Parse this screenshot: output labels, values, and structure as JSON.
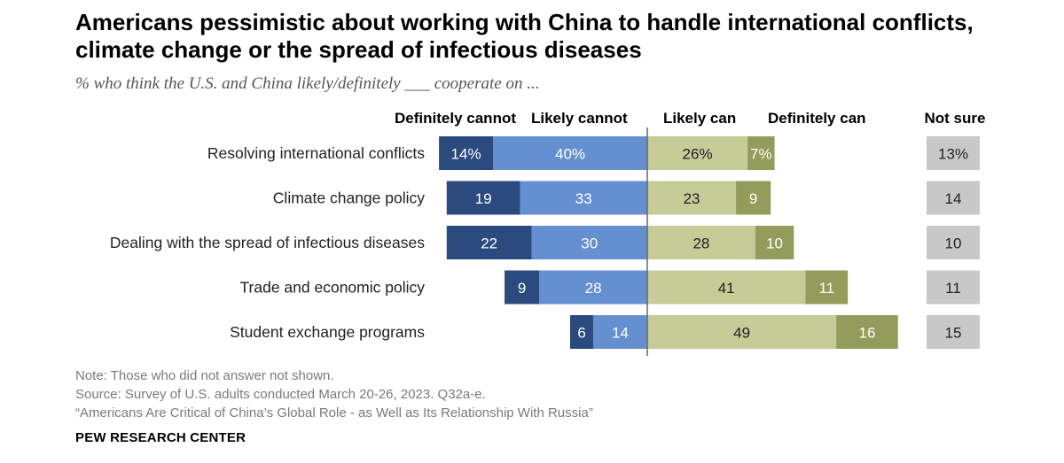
{
  "title": "Americans pessimistic about working with China to handle international conflicts, climate change or the spread of infectious diseases",
  "subtitle": "% who think the U.S. and China likely/definitely ___ cooperate on ...",
  "chart_data": {
    "type": "bar",
    "orientation": "horizontal-diverging",
    "categories": [
      "Resolving international conflicts",
      "Climate change policy",
      "Dealing with the spread of infectious diseases",
      "Trade and economic policy",
      "Student exchange programs"
    ],
    "series": [
      {
        "name": "Definitely cannot",
        "values": [
          14,
          19,
          22,
          9,
          6
        ],
        "labels": [
          "14%",
          "19",
          "22",
          "9",
          "6"
        ],
        "color": "#2b4a7e",
        "side": "negative"
      },
      {
        "name": "Likely cannot",
        "values": [
          40,
          33,
          30,
          28,
          14
        ],
        "labels": [
          "40%",
          "33",
          "30",
          "28",
          "14"
        ],
        "color": "#6490d2",
        "side": "negative"
      },
      {
        "name": "Likely can",
        "values": [
          26,
          23,
          28,
          41,
          49
        ],
        "labels": [
          "26%",
          "23",
          "28",
          "41",
          "49"
        ],
        "color": "#c7cb98",
        "side": "positive"
      },
      {
        "name": "Definitely can",
        "values": [
          7,
          9,
          10,
          11,
          16
        ],
        "labels": [
          "7%",
          "9",
          "10",
          "11",
          "16"
        ],
        "color": "#939c5a",
        "side": "positive"
      }
    ],
    "not_sure": {
      "name": "Not sure",
      "values": [
        13,
        14,
        10,
        11,
        15
      ],
      "labels": [
        "13%",
        "14",
        "10",
        "11",
        "15"
      ],
      "color": "#c8c8c8"
    },
    "xlim": [
      -56,
      52
    ]
  },
  "notes": [
    "Note: Those who did not answer not shown.",
    "Source: Survey of U.S. adults conducted March 20-26, 2023. Q32a-e.",
    "“Americans Are Critical of China’s Global Role - as Well as Its Relationship With Russia”"
  ],
  "brand": "PEW RESEARCH CENTER"
}
